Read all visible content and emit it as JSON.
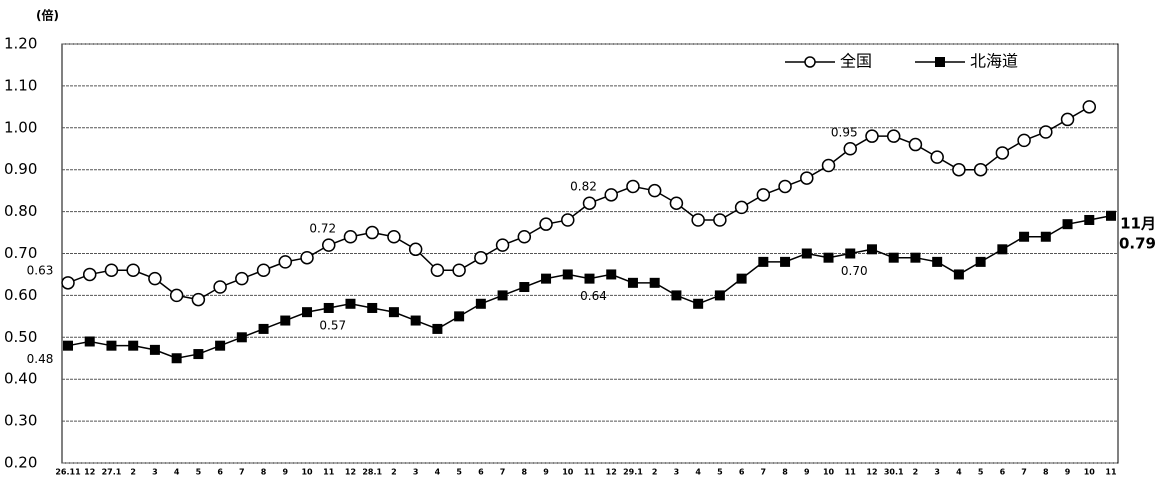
{
  "chart_data": {
    "type": "line",
    "y_unit": "(倍)",
    "categories": [
      "26.11",
      "12",
      "27.1",
      "2",
      "3",
      "4",
      "5",
      "6",
      "7",
      "8",
      "9",
      "10",
      "11",
      "12",
      "28.1",
      "2",
      "3",
      "4",
      "5",
      "6",
      "7",
      "8",
      "9",
      "10",
      "11",
      "12",
      "29.1",
      "2",
      "3",
      "4",
      "5",
      "6",
      "7",
      "8",
      "9",
      "10",
      "11",
      "12",
      "30.1",
      "2",
      "3",
      "4",
      "5",
      "6",
      "7",
      "8",
      "9",
      "10",
      "11"
    ],
    "series": [
      {
        "name": "全国",
        "color": "#000000",
        "marker": "circle",
        "values": [
          0.63,
          0.65,
          0.66,
          0.66,
          0.64,
          0.6,
          0.59,
          0.62,
          0.64,
          0.66,
          0.68,
          0.69,
          0.72,
          0.74,
          0.75,
          0.74,
          0.71,
          0.66,
          0.66,
          0.69,
          0.72,
          0.74,
          0.77,
          0.78,
          0.82,
          0.84,
          0.86,
          0.85,
          0.82,
          0.78,
          0.78,
          0.81,
          0.84,
          0.86,
          0.88,
          0.91,
          0.95,
          0.98,
          0.98,
          0.96,
          0.93,
          0.9,
          0.9,
          0.94,
          0.97,
          0.99,
          1.02,
          1.05,
          null
        ],
        "value_labels": [
          "0.63",
          null,
          null,
          null,
          null,
          null,
          null,
          null,
          null,
          null,
          null,
          null,
          "0.72",
          null,
          null,
          null,
          null,
          null,
          null,
          null,
          null,
          null,
          null,
          null,
          "0.82",
          null,
          null,
          null,
          null,
          null,
          null,
          null,
          null,
          null,
          null,
          null,
          "0.95",
          null,
          null,
          null,
          null,
          null,
          null,
          null,
          null,
          null,
          null,
          null,
          null
        ]
      },
      {
        "name": "北海道",
        "color": "#000000",
        "marker": "square",
        "values": [
          0.48,
          0.49,
          0.48,
          0.48,
          0.47,
          0.45,
          0.46,
          0.48,
          0.5,
          0.52,
          0.54,
          0.56,
          0.57,
          0.58,
          0.57,
          0.56,
          0.54,
          0.52,
          0.55,
          0.58,
          0.6,
          0.62,
          0.64,
          0.65,
          0.64,
          0.65,
          0.63,
          0.63,
          0.6,
          0.58,
          0.6,
          0.64,
          0.68,
          0.68,
          0.7,
          0.69,
          0.7,
          0.71,
          0.69,
          0.69,
          0.68,
          0.65,
          0.68,
          0.71,
          0.74,
          0.74,
          0.77,
          0.78,
          0.79
        ],
        "value_labels": [
          "0.48",
          null,
          null,
          null,
          null,
          null,
          null,
          null,
          null,
          null,
          null,
          null,
          "0.57",
          null,
          null,
          null,
          null,
          null,
          null,
          null,
          null,
          null,
          null,
          null,
          "0.64",
          null,
          null,
          null,
          null,
          null,
          null,
          null,
          null,
          null,
          null,
          null,
          "0.70",
          null,
          null,
          null,
          null,
          null,
          null,
          null,
          null,
          null,
          null,
          null,
          "0.79"
        ]
      }
    ],
    "annotation": "11月",
    "ylim": [
      0.2,
      1.2
    ],
    "yticks": [
      {
        "value": 0.2,
        "label": "0.20"
      },
      {
        "value": 0.3,
        "label": "0.30"
      },
      {
        "value": 0.4,
        "label": "0.40"
      },
      {
        "value": 0.5,
        "label": "0.50"
      },
      {
        "value": 0.6,
        "label": "0.60"
      },
      {
        "value": 0.7,
        "label": "0.70"
      },
      {
        "value": 0.8,
        "label": "0.80"
      },
      {
        "value": 0.9,
        "label": "0.90"
      },
      {
        "value": 1.0,
        "label": "1.00"
      },
      {
        "value": 1.1,
        "label": "1.10"
      },
      {
        "value": 1.2,
        "label": "1.20"
      }
    ],
    "grid": true,
    "legend": "upper right"
  }
}
